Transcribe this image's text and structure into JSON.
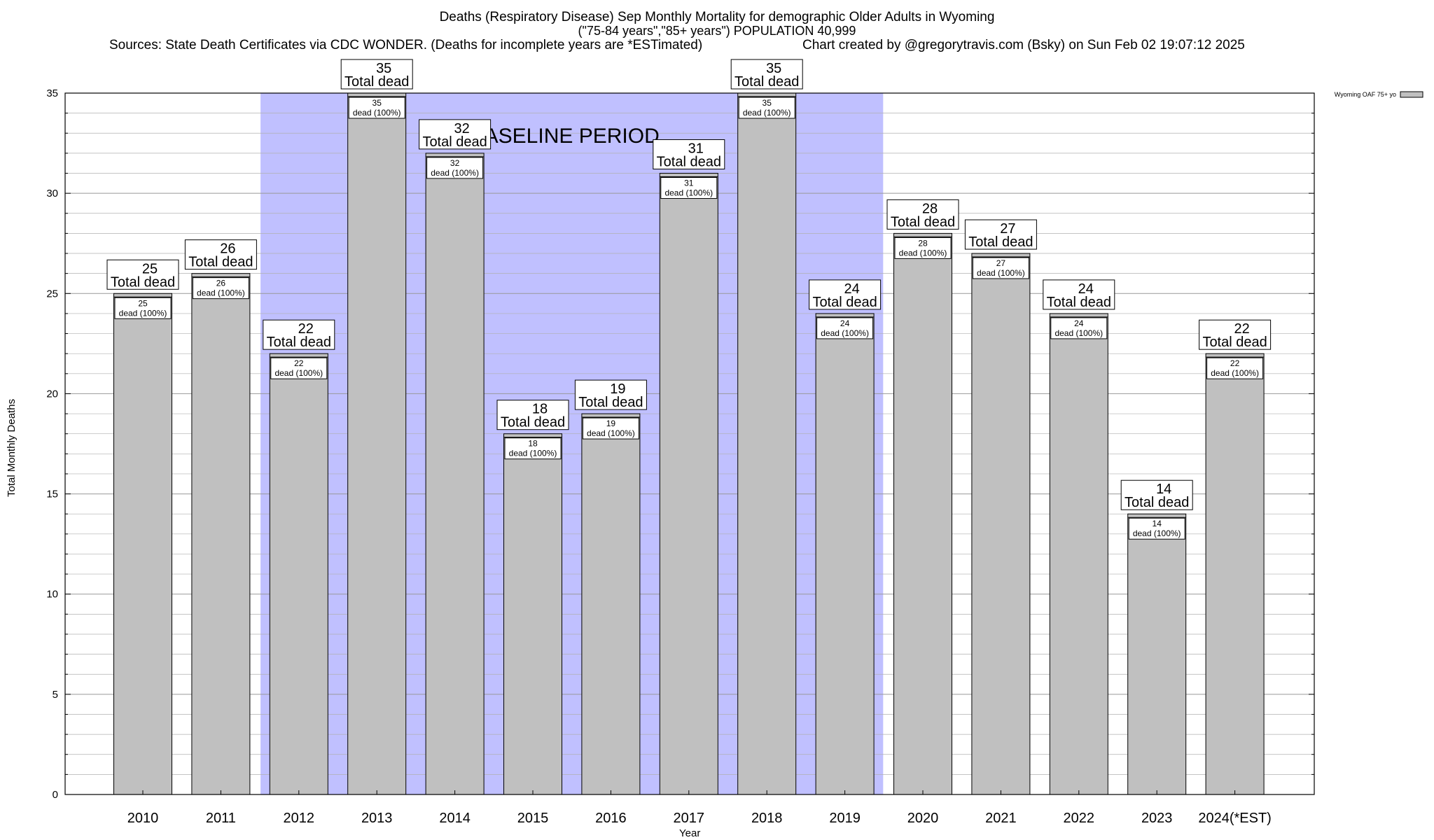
{
  "header": {
    "title_line1": "Deaths (Respiratory Disease) Sep Monthly Mortality for demographic Older Adults in Wyoming",
    "title_line2": "(\"75-84 years\",\"85+ years\") POPULATION 40,999",
    "sources": "Sources: State Death Certificates via CDC WONDER. (Deaths for incomplete years are *ESTimated)",
    "credit": "Chart created by @gregorytravis.com (Bsky) on Sun Feb 02 19:07:12 2025"
  },
  "colors": {
    "bar_fill": "#c0c0c0",
    "baseline_fill": "#c0c0ff",
    "grid": "#b0b0b0"
  },
  "chart_data": {
    "type": "bar",
    "title": "Deaths (Respiratory Disease) Sep Monthly Mortality for demographic Older Adults in Wyoming",
    "xlabel": "Year",
    "ylabel": "Total Monthly Deaths",
    "ylim": [
      0,
      35
    ],
    "yticks": [
      0,
      5,
      10,
      15,
      20,
      25,
      30,
      35
    ],
    "grid": true,
    "legend_position": "top-right",
    "categories": [
      "2010",
      "2011",
      "2012",
      "2013",
      "2014",
      "2015",
      "2016",
      "2017",
      "2018",
      "2019",
      "2020",
      "2021",
      "2022",
      "2023",
      "2024(*EST)"
    ],
    "series": [
      {
        "name": "Wyoming OAF 75+ yo",
        "values": [
          25,
          26,
          22,
          35,
          32,
          18,
          19,
          31,
          35,
          24,
          28,
          27,
          24,
          14,
          22
        ]
      }
    ],
    "bar_total_label": "Total dead",
    "bar_inner_label": "dead (100%)",
    "annotation": {
      "text": "BASELINE PERIOD",
      "start_category": "2012",
      "end_category": "2019"
    }
  }
}
